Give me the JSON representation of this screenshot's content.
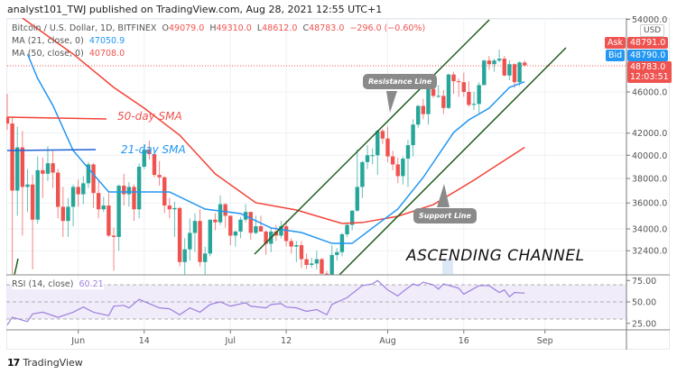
{
  "publish_line": "analyst101_TWJ published on TradingView.com, Aug 28, 2021 12:55 UTC+1",
  "legend": {
    "symbol": "Bitcoin / U.S. Dollar, 1D, BITFINEX",
    "open_label": "O",
    "open": "49079.0",
    "high_label": "H",
    "high": "49310.0",
    "low_label": "L",
    "low": "48612.0",
    "close_label": "C",
    "close": "48783.0",
    "change": "−296.0 (−0.60%)",
    "ma21_label": "MA (21, close, 0)",
    "ma21_value": "47050.9",
    "ma50_label": "MA (50, close, 0)",
    "ma50_value": "40708.0",
    "rsi_label": "RSI (14, close)",
    "rsi_value": "60.21"
  },
  "price_axis": {
    "currency": "USD",
    "ticks": [
      "54000.0",
      "46000.0",
      "42000.0",
      "40000.0",
      "38000.0",
      "36000.0",
      "34000.0",
      "32400.0"
    ],
    "ask_label": "Ask",
    "ask": "48791.0",
    "bid_label": "Bid",
    "bid": "48790.0",
    "last": "48783.0",
    "countdown": "12:03:51"
  },
  "rsi_axis": {
    "ticks": [
      "75.00",
      "50.00",
      "25.00"
    ]
  },
  "time_axis": {
    "ticks": [
      "Jun",
      "14",
      "Jul",
      "12",
      "Aug",
      "16",
      "Sep"
    ]
  },
  "annotations": {
    "sma50": "50-day SMA",
    "sma21": "21-day SMA",
    "resistance": "Resistance Line",
    "support": "Support Line",
    "channel": "ASCENDING CHANNEL"
  },
  "footer": {
    "brand": "TradingView"
  },
  "colors": {
    "up": "#26a69a",
    "down": "#ef5350",
    "ma21": "#2196f3",
    "ma50": "#f44336",
    "rsi": "#9c7fe0",
    "channel": "#1e5c1e"
  },
  "chart_data": {
    "type": "candlestick",
    "scale": "log",
    "grid": true,
    "ylim": [
      30700,
      54500
    ],
    "time_ticks": [
      "2021-06-01",
      "2021-06-14",
      "2021-07-01",
      "2021-07-12",
      "2021-08-01",
      "2021-08-16",
      "2021-09-01"
    ],
    "price_ticks": [
      54000,
      46000,
      42000,
      40000,
      38000,
      36000,
      34000,
      32400
    ],
    "candles": [
      [
        "2021-05-18",
        43500,
        45800,
        42300,
        42900
      ],
      [
        "2021-05-19",
        42900,
        43500,
        30100,
        37000
      ],
      [
        "2021-05-20",
        37000,
        42600,
        35000,
        40700
      ],
      [
        "2021-05-21",
        40700,
        42200,
        33500,
        37300
      ],
      [
        "2021-05-22",
        37300,
        38800,
        35300,
        37500
      ],
      [
        "2021-05-23",
        37500,
        38300,
        31100,
        34700
      ],
      [
        "2021-05-24",
        34700,
        39900,
        34400,
        38700
      ],
      [
        "2021-05-25",
        38700,
        39800,
        36400,
        38400
      ],
      [
        "2021-05-26",
        38400,
        40800,
        37800,
        39300
      ],
      [
        "2021-05-27",
        39300,
        40400,
        37200,
        38500
      ],
      [
        "2021-05-28",
        38500,
        38800,
        34800,
        35700
      ],
      [
        "2021-05-29",
        35700,
        37300,
        33400,
        34600
      ],
      [
        "2021-05-30",
        34600,
        36400,
        33400,
        35700
      ],
      [
        "2021-05-31",
        35700,
        37500,
        34200,
        37300
      ],
      [
        "2021-06-01",
        37300,
        37900,
        35700,
        36700
      ],
      [
        "2021-06-02",
        36700,
        38200,
        35900,
        37600
      ],
      [
        "2021-06-03",
        37600,
        39400,
        37200,
        39200
      ],
      [
        "2021-06-04",
        39200,
        39300,
        35600,
        36800
      ],
      [
        "2021-06-05",
        36800,
        37900,
        34800,
        35500
      ],
      [
        "2021-06-06",
        35500,
        36500,
        35300,
        35800
      ],
      [
        "2021-06-07",
        35800,
        36800,
        33400,
        33500
      ],
      [
        "2021-06-08",
        33500,
        34100,
        31000,
        33400
      ],
      [
        "2021-06-09",
        33400,
        37500,
        32400,
        37400
      ],
      [
        "2021-06-10",
        37400,
        38400,
        35800,
        36700
      ],
      [
        "2021-06-11",
        36700,
        37700,
        35700,
        37300
      ],
      [
        "2021-06-12",
        37300,
        37500,
        34600,
        35500
      ],
      [
        "2021-06-13",
        35500,
        39300,
        34800,
        39000
      ],
      [
        "2021-06-14",
        39000,
        41000,
        38800,
        40500
      ],
      [
        "2021-06-15",
        40500,
        41300,
        39600,
        40100
      ],
      [
        "2021-06-16",
        40100,
        40500,
        38100,
        38300
      ],
      [
        "2021-06-17",
        38300,
        39500,
        37400,
        38100
      ],
      [
        "2021-06-18",
        38100,
        38200,
        35200,
        35800
      ],
      [
        "2021-06-19",
        35800,
        36400,
        34800,
        35500
      ],
      [
        "2021-06-20",
        35500,
        36100,
        33400,
        35600
      ],
      [
        "2021-06-21",
        35600,
        35700,
        31300,
        31600
      ],
      [
        "2021-06-22",
        31600,
        33300,
        28800,
        32500
      ],
      [
        "2021-06-23",
        32500,
        34800,
        31700,
        33700
      ],
      [
        "2021-06-24",
        33700,
        35200,
        32300,
        34600
      ],
      [
        "2021-06-25",
        34600,
        35500,
        31300,
        31600
      ],
      [
        "2021-06-26",
        31600,
        32700,
        30200,
        32200
      ],
      [
        "2021-06-27",
        32200,
        34700,
        32000,
        34700
      ],
      [
        "2021-06-28",
        34700,
        35200,
        33900,
        34500
      ],
      [
        "2021-06-29",
        34500,
        36600,
        34300,
        35900
      ],
      [
        "2021-06-30",
        35900,
        36000,
        34100,
        35000
      ],
      [
        "2021-07-01",
        35000,
        35000,
        32800,
        33500
      ],
      [
        "2021-07-02",
        33500,
        33900,
        32700,
        33800
      ],
      [
        "2021-07-03",
        33800,
        34900,
        33300,
        34700
      ],
      [
        "2021-07-04",
        34700,
        35900,
        34500,
        35300
      ],
      [
        "2021-07-05",
        35300,
        35300,
        33200,
        33700
      ],
      [
        "2021-07-06",
        33700,
        35000,
        33600,
        34200
      ],
      [
        "2021-07-07",
        34200,
        35000,
        33800,
        33800
      ],
      [
        "2021-07-08",
        33800,
        33900,
        32100,
        32900
      ],
      [
        "2021-07-09",
        32900,
        34100,
        32300,
        33800
      ],
      [
        "2021-07-10",
        33800,
        34300,
        33100,
        33500
      ],
      [
        "2021-07-11",
        33500,
        34600,
        33300,
        34200
      ],
      [
        "2021-07-12",
        34200,
        34600,
        32700,
        33100
      ],
      [
        "2021-07-13",
        33100,
        33300,
        32200,
        32700
      ],
      [
        "2021-07-14",
        32700,
        33100,
        31600,
        32800
      ],
      [
        "2021-07-15",
        32800,
        33100,
        31200,
        31800
      ],
      [
        "2021-07-16",
        31800,
        32200,
        31100,
        31400
      ],
      [
        "2021-07-17",
        31400,
        31900,
        31200,
        31500
      ],
      [
        "2021-07-18",
        31500,
        32400,
        31100,
        31800
      ],
      [
        "2021-07-19",
        31800,
        31900,
        30500,
        30800
      ],
      [
        "2021-07-20",
        30800,
        31000,
        29300,
        29800
      ],
      [
        "2021-07-21",
        29800,
        32800,
        29500,
        32100
      ],
      [
        "2021-07-22",
        32100,
        32600,
        31700,
        32300
      ],
      [
        "2021-07-23",
        32300,
        33700,
        32000,
        33600
      ],
      [
        "2021-07-24",
        33600,
        34500,
        33400,
        34300
      ],
      [
        "2021-07-25",
        34300,
        35400,
        33900,
        35400
      ],
      [
        "2021-07-26",
        35400,
        40500,
        35300,
        37300
      ],
      [
        "2021-07-27",
        37300,
        39500,
        36400,
        39400
      ],
      [
        "2021-07-28",
        39400,
        40900,
        38800,
        40000
      ],
      [
        "2021-07-29",
        40000,
        40600,
        39200,
        40000
      ],
      [
        "2021-07-30",
        40000,
        42300,
        38300,
        42200
      ],
      [
        "2021-07-31",
        42200,
        42400,
        41000,
        41500
      ],
      [
        "2021-08-01",
        41500,
        42600,
        39400,
        39900
      ],
      [
        "2021-08-02",
        39900,
        40400,
        38700,
        39200
      ],
      [
        "2021-08-03",
        39200,
        39800,
        37600,
        38200
      ],
      [
        "2021-08-04",
        38200,
        39900,
        37500,
        39700
      ],
      [
        "2021-08-05",
        39700,
        41400,
        37300,
        40900
      ],
      [
        "2021-08-06",
        40900,
        43300,
        39900,
        42800
      ],
      [
        "2021-08-07",
        42800,
        44700,
        42500,
        44600
      ],
      [
        "2021-08-08",
        44600,
        45300,
        43300,
        43800
      ],
      [
        "2021-08-09",
        43800,
        46400,
        42800,
        46300
      ],
      [
        "2021-08-10",
        46300,
        46700,
        45400,
        45600
      ],
      [
        "2021-08-11",
        45600,
        46700,
        45400,
        45600
      ],
      [
        "2021-08-12",
        45600,
        46200,
        43800,
        44400
      ],
      [
        "2021-08-13",
        44400,
        47900,
        44300,
        47800
      ],
      [
        "2021-08-14",
        47800,
        48100,
        45800,
        47100
      ],
      [
        "2021-08-15",
        47100,
        47400,
        45500,
        47000
      ],
      [
        "2021-08-16",
        47000,
        48000,
        45500,
        46000
      ],
      [
        "2021-08-17",
        46000,
        47100,
        44500,
        44700
      ],
      [
        "2021-08-18",
        44700,
        46000,
        44200,
        44800
      ],
      [
        "2021-08-19",
        44800,
        47000,
        43900,
        46700
      ],
      [
        "2021-08-20",
        46700,
        49400,
        46700,
        49300
      ],
      [
        "2021-08-21",
        49300,
        49800,
        48300,
        48900
      ],
      [
        "2021-08-22",
        48900,
        49500,
        48100,
        49300
      ],
      [
        "2021-08-23",
        49300,
        50500,
        49100,
        49500
      ],
      [
        "2021-08-24",
        49500,
        49800,
        47600,
        47700
      ],
      [
        "2021-08-25",
        47700,
        49300,
        47200,
        48900
      ],
      [
        "2021-08-26",
        48900,
        49000,
        46400,
        47000
      ],
      [
        "2021-08-27",
        47000,
        49200,
        46600,
        49100
      ],
      [
        "2021-08-28",
        49079,
        49310,
        48612,
        48783
      ]
    ],
    "ma21": [
      [
        "2021-05-22",
        50010
      ],
      [
        "2021-05-24",
        47390
      ],
      [
        "2021-05-27",
        44650
      ],
      [
        "2021-05-31",
        40420
      ],
      [
        "2021-06-03",
        38850
      ],
      [
        "2021-06-07",
        36890
      ],
      [
        "2021-06-14",
        36890
      ],
      [
        "2021-06-19",
        36890
      ],
      [
        "2021-06-26",
        35520
      ],
      [
        "2021-07-03",
        35170
      ],
      [
        "2021-07-09",
        34070
      ],
      [
        "2021-07-15",
        33730
      ],
      [
        "2021-07-21",
        32930
      ],
      [
        "2021-07-25",
        32930
      ],
      [
        "2021-07-29",
        34070
      ],
      [
        "2021-08-03",
        35520
      ],
      [
        "2021-08-08",
        38090
      ],
      [
        "2021-08-14",
        42060
      ],
      [
        "2021-08-17",
        43250
      ],
      [
        "2021-08-21",
        44380
      ],
      [
        "2021-08-25",
        46460
      ],
      [
        "2021-08-28",
        47050.9
      ]
    ],
    "ma50": [
      [
        "2021-05-21",
        54150
      ],
      [
        "2021-05-31",
        50010
      ],
      [
        "2021-06-08",
        46460
      ],
      [
        "2021-06-14",
        44380
      ],
      [
        "2021-06-21",
        41810
      ],
      [
        "2021-06-28",
        38390
      ],
      [
        "2021-07-06",
        36020
      ],
      [
        "2021-07-14",
        35450
      ],
      [
        "2021-07-23",
        34410
      ],
      [
        "2021-07-27",
        34480
      ],
      [
        "2021-08-03",
        34960
      ],
      [
        "2021-08-10",
        35870
      ],
      [
        "2021-08-18",
        37860
      ],
      [
        "2021-08-28",
        40708.0
      ]
    ],
    "rsi": {
      "levels": [
        70,
        50,
        30
      ],
      "ticks": [
        75,
        50,
        25
      ],
      "values": [
        [
          "2021-05-18",
          23
        ],
        [
          "2021-05-19",
          32
        ],
        [
          "2021-05-22",
          27
        ],
        [
          "2021-05-23",
          36
        ],
        [
          "2021-05-25",
          38
        ],
        [
          "2021-05-28",
          32
        ],
        [
          "2021-05-31",
          38
        ],
        [
          "2021-06-02",
          44
        ],
        [
          "2021-06-04",
          38
        ],
        [
          "2021-06-07",
          34
        ],
        [
          "2021-06-08",
          45
        ],
        [
          "2021-06-10",
          46
        ],
        [
          "2021-06-11",
          43
        ],
        [
          "2021-06-13",
          53
        ],
        [
          "2021-06-15",
          48
        ],
        [
          "2021-06-17",
          43
        ],
        [
          "2021-06-19",
          42
        ],
        [
          "2021-06-21",
          35
        ],
        [
          "2021-06-23",
          43
        ],
        [
          "2021-06-25",
          38
        ],
        [
          "2021-06-27",
          47
        ],
        [
          "2021-06-29",
          50
        ],
        [
          "2021-07-01",
          45
        ],
        [
          "2021-07-04",
          49
        ],
        [
          "2021-07-05",
          45
        ],
        [
          "2021-07-08",
          43
        ],
        [
          "2021-07-09",
          47
        ],
        [
          "2021-07-11",
          48
        ],
        [
          "2021-07-12",
          44
        ],
        [
          "2021-07-14",
          43
        ],
        [
          "2021-07-16",
          39
        ],
        [
          "2021-07-18",
          41
        ],
        [
          "2021-07-20",
          35
        ],
        [
          "2021-07-21",
          47
        ],
        [
          "2021-07-24",
          55
        ],
        [
          "2021-07-27",
          69
        ],
        [
          "2021-07-29",
          71
        ],
        [
          "2021-07-30",
          75
        ],
        [
          "2021-08-01",
          64
        ],
        [
          "2021-08-03",
          57
        ],
        [
          "2021-08-04",
          62
        ],
        [
          "2021-08-06",
          71
        ],
        [
          "2021-08-07",
          69
        ],
        [
          "2021-08-08",
          73
        ],
        [
          "2021-08-10",
          70
        ],
        [
          "2021-08-11",
          65
        ],
        [
          "2021-08-12",
          71
        ],
        [
          "2021-08-15",
          66
        ],
        [
          "2021-08-16",
          59
        ],
        [
          "2021-08-19",
          69
        ],
        [
          "2021-08-21",
          69
        ],
        [
          "2021-08-23",
          61
        ],
        [
          "2021-08-24",
          64
        ],
        [
          "2021-08-25",
          56
        ],
        [
          "2021-08-26",
          61
        ],
        [
          "2021-08-28",
          60.21
        ]
      ]
    }
  }
}
